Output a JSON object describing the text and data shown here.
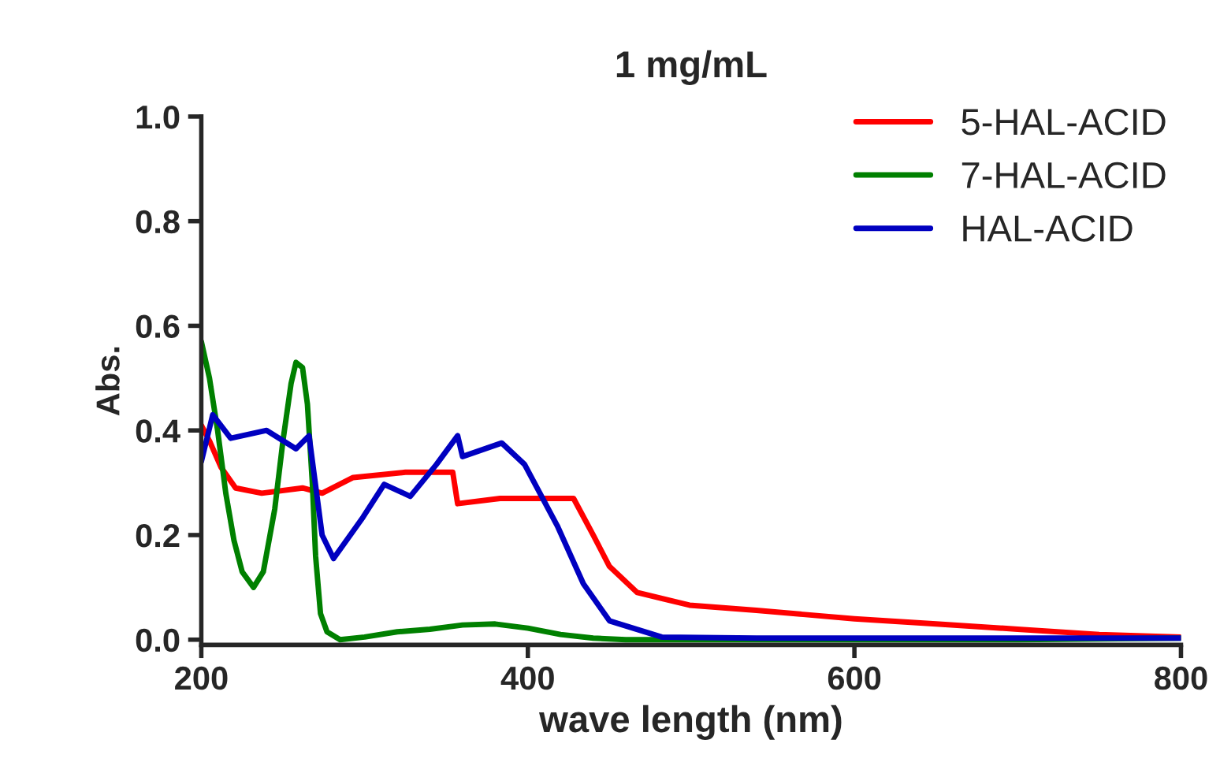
{
  "chart_data": {
    "type": "line",
    "title": "1 mg/mL",
    "xlabel": "wave length (nm)",
    "ylabel": "Abs.",
    "xlim": [
      200,
      800
    ],
    "xticks": [
      200,
      400,
      600,
      800
    ],
    "ylim": [
      -0.01,
      1.0
    ],
    "yticks": [
      {
        "value": 0,
        "label": "0.0"
      },
      0.2,
      0.4,
      0.6,
      0.8,
      {
        "value": 1,
        "label": "1.0"
      }
    ],
    "grid": false,
    "legend": "top right",
    "line_style": "solid",
    "series": [
      {
        "name": "5-HAL-ACID",
        "color": "#ff0000",
        "x": [
          200,
          205,
          212,
          221,
          237,
          262,
          274,
          293,
          325,
          354,
          357,
          383,
          421,
          428,
          440,
          450,
          467,
          499,
          540,
          600,
          650,
          700,
          750,
          800
        ],
        "values": [
          0.41,
          0.38,
          0.33,
          0.29,
          0.28,
          0.29,
          0.28,
          0.31,
          0.32,
          0.32,
          0.26,
          0.27,
          0.27,
          0.27,
          0.2,
          0.14,
          0.09,
          0.066,
          0.056,
          0.04,
          0.03,
          0.02,
          0.01,
          0.005
        ]
      },
      {
        "name": "7-HAL-ACID",
        "color": "#008000",
        "x": [
          200,
          205,
          210,
          215,
          220,
          225,
          232,
          238,
          245,
          250,
          255,
          258,
          262,
          265,
          268,
          270,
          273,
          277,
          285,
          300,
          320,
          340,
          360,
          380,
          400,
          420,
          440,
          460,
          500,
          600,
          700,
          800
        ],
        "values": [
          0.57,
          0.5,
          0.4,
          0.28,
          0.19,
          0.13,
          0.1,
          0.13,
          0.25,
          0.38,
          0.49,
          0.53,
          0.52,
          0.45,
          0.3,
          0.16,
          0.05,
          0.015,
          0.0,
          0.005,
          0.015,
          0.02,
          0.028,
          0.03,
          0.022,
          0.01,
          0.003,
          0.0,
          0.0,
          0.0,
          0.0,
          0.003
        ]
      },
      {
        "name": "HAL-ACID",
        "color": "#0000c0",
        "x": [
          200,
          207,
          218,
          240,
          258,
          266,
          274,
          281,
          299,
          312,
          328,
          344,
          357,
          360,
          384,
          398,
          418,
          434,
          450,
          482,
          540,
          600,
          700,
          800
        ],
        "values": [
          0.34,
          0.43,
          0.385,
          0.4,
          0.365,
          0.39,
          0.2,
          0.155,
          0.234,
          0.297,
          0.274,
          0.335,
          0.39,
          0.35,
          0.376,
          0.335,
          0.218,
          0.107,
          0.036,
          0.005,
          0.003,
          0.003,
          0.003,
          0.003
        ]
      }
    ]
  }
}
